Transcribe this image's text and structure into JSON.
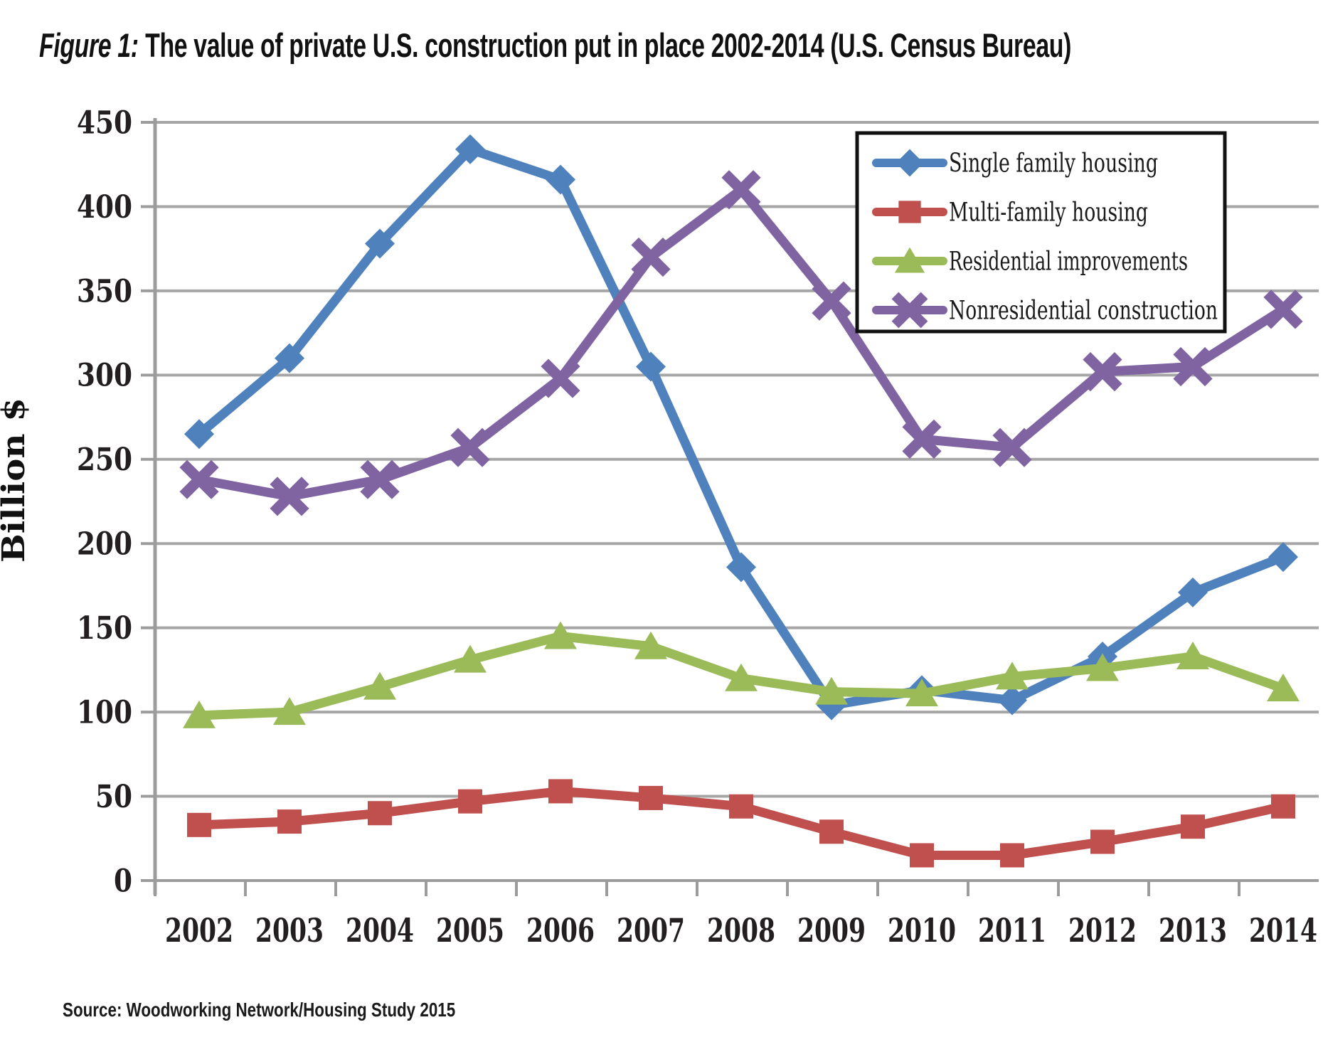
{
  "figure": {
    "title_prefix": "Figure 1:",
    "title_rest": "The value of private U.S. construction put in place 2002-2014 (U.S. Census Bureau)",
    "source": "Source: Woodworking Network/Housing Study 2015"
  },
  "colors": {
    "background": "#ffffff",
    "gridline": "#a6a6a6",
    "axis": "#9c9c9c",
    "tick_label": "#231f20",
    "legend_border": "#111111",
    "legend_text": "#1a1a1a",
    "series_blue": "#4f81bd",
    "series_red": "#c0504d",
    "series_green": "#9bbb59",
    "series_purple": "#8064a2"
  },
  "chart_data": {
    "type": "line",
    "title": "Figure 1: The value of private U.S. construction put in place 2002-2014 (U.S. Census Bureau)",
    "xlabel": "",
    "ylabel": "Billion $",
    "ylim": [
      0,
      450
    ],
    "yticks": [
      0,
      50,
      100,
      150,
      200,
      250,
      300,
      350,
      400,
      450
    ],
    "grid": true,
    "legend_position": "top-right",
    "categories": [
      "2002",
      "2003",
      "2004",
      "2005",
      "2006",
      "2007",
      "2008",
      "2009",
      "2010",
      "2011",
      "2012",
      "2013",
      "2014"
    ],
    "series": [
      {
        "name": "Single family housing",
        "color": "#4f81bd",
        "marker": "diamond",
        "values": [
          265,
          310,
          378,
          434,
          416,
          305,
          186,
          104,
          113,
          107,
          133,
          171,
          192
        ]
      },
      {
        "name": "Multi-family housing",
        "color": "#c0504d",
        "marker": "square",
        "values": [
          33,
          35,
          40,
          47,
          53,
          49,
          44,
          29,
          15,
          15,
          23,
          32,
          44
        ]
      },
      {
        "name": "Residential improvements",
        "color": "#9bbb59",
        "marker": "triangle",
        "values": [
          98,
          100,
          115,
          131,
          145,
          139,
          120,
          112,
          111,
          121,
          126,
          133,
          114
        ]
      },
      {
        "name": "Nonresidential construction",
        "color": "#8064a2",
        "marker": "x",
        "values": [
          238,
          228,
          238,
          257,
          298,
          370,
          410,
          344,
          262,
          257,
          302,
          305,
          339
        ]
      }
    ]
  }
}
